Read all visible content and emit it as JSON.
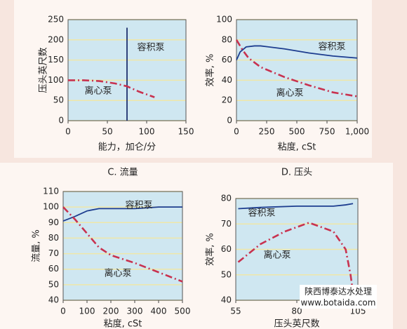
{
  "chart_data": [
    {
      "type": "line",
      "xlabel": "能力，加仑/分",
      "ylabel": "压头英尺数",
      "xlim": [
        0,
        150
      ],
      "xticks": [
        0,
        50,
        100,
        150
      ],
      "ylim": [
        0,
        250
      ],
      "yticks": [
        0,
        50,
        100,
        150,
        200,
        250
      ],
      "grid": true,
      "series": [
        {
          "name": "容积泵",
          "color": "#1d2f6e",
          "linestyle": "solid",
          "x": [
            75,
            75
          ],
          "values": [
            0,
            230
          ]
        },
        {
          "name": "离心泵",
          "color": "#c8324f",
          "linestyle": "dashdot",
          "x": [
            0,
            20,
            40,
            60,
            75,
            90,
            110
          ],
          "values": [
            100,
            100,
            98,
            92,
            85,
            72,
            58
          ]
        }
      ]
    },
    {
      "type": "line",
      "xlabel": "粘度, cSt",
      "ylabel": "效率, %",
      "xlim": [
        0,
        1000
      ],
      "xticks": [
        0,
        250,
        500,
        750,
        {
          "value": 1000,
          "label": "1,000"
        }
      ],
      "ylim": [
        0,
        100
      ],
      "yticks": [
        0,
        20,
        40,
        60,
        80,
        100
      ],
      "grid": true,
      "series": [
        {
          "name": "容积泵",
          "color": "#1d3d8f",
          "linestyle": "solid",
          "x": [
            0,
            30,
            80,
            150,
            200,
            400,
            600,
            800,
            1000
          ],
          "values": [
            60,
            68,
            73,
            74,
            74,
            71,
            67,
            64,
            62
          ]
        },
        {
          "name": "离心泵",
          "color": "#c8324f",
          "linestyle": "dashdot",
          "x": [
            0,
            50,
            100,
            200,
            400,
            600,
            800,
            1000
          ],
          "values": [
            80,
            70,
            62,
            53,
            43,
            35,
            28,
            24
          ]
        }
      ]
    },
    {
      "type": "line",
      "title": "C. 流量",
      "xlabel": "粘度, cSt",
      "ylabel": "流量, %",
      "xlim": [
        0,
        500
      ],
      "xticks": [
        0,
        100,
        200,
        300,
        400,
        500
      ],
      "ylim": [
        40,
        110
      ],
      "yticks": [
        40,
        50,
        60,
        70,
        80,
        90,
        100,
        110
      ],
      "grid": true,
      "series": [
        {
          "name": "容积泵",
          "color": "#1d3d8f",
          "linestyle": "solid",
          "x": [
            0,
            50,
            100,
            150,
            300,
            400,
            500
          ],
          "values": [
            91,
            94,
            97.5,
            99,
            99,
            100,
            100
          ]
        },
        {
          "name": "离心泵",
          "color": "#c8324f",
          "linestyle": "dashdot",
          "x": [
            0,
            50,
            100,
            150,
            200,
            300,
            400,
            500
          ],
          "values": [
            100,
            92,
            83,
            74,
            69,
            64,
            58,
            52
          ]
        }
      ]
    },
    {
      "type": "line",
      "title": "D. 压头",
      "xlabel": "压头英尺数",
      "ylabel": "效率, %",
      "xlim": [
        55,
        105
      ],
      "xticks": [
        55,
        80,
        105
      ],
      "ylim": [
        40,
        80
      ],
      "yticks": [
        40,
        50,
        60,
        70,
        80
      ],
      "grid": true,
      "series": [
        {
          "name": "容积泵",
          "color": "#1d3d8f",
          "linestyle": "solid",
          "x": [
            56,
            65,
            80,
            95,
            100,
            103
          ],
          "values": [
            76,
            76.5,
            77,
            77,
            77.5,
            78
          ]
        },
        {
          "name": "离心泵",
          "color": "#c8324f",
          "linestyle": "dashdot",
          "x": [
            56,
            65,
            75,
            85,
            95,
            100,
            102,
            103
          ],
          "values": [
            55,
            62,
            67,
            70.5,
            67,
            60,
            50,
            43
          ]
        }
      ]
    }
  ],
  "watermark": [
    "陕西博泰达水处理",
    "www.botaida.com"
  ]
}
